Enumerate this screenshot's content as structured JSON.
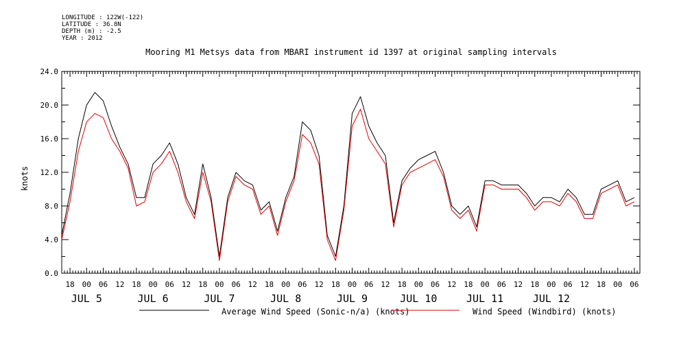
{
  "meta": {
    "longitude": "LONGITUDE : 122W(-122)",
    "latitude": "LATITUDE : 36.8N",
    "depth": "DEPTH (m) : -2.5",
    "year": "YEAR : 2012"
  },
  "chart_data": {
    "type": "line",
    "title": "Mooring M1 Metsys data from MBARI instrument id 1397 at original sampling intervals",
    "ylabel": "knots",
    "xlabel": "",
    "ylim": [
      0,
      24
    ],
    "y_ticks": [
      "0.0",
      "4.0",
      "8.0",
      "12.0",
      "16.0",
      "20.0",
      "24.0"
    ],
    "x_range_hours": [
      -9,
      200
    ],
    "x_hour_ticks": [
      {
        "h": -6,
        "label": "18"
      },
      {
        "h": 0,
        "label": "00"
      },
      {
        "h": 6,
        "label": "06"
      },
      {
        "h": 12,
        "label": "12"
      },
      {
        "h": 18,
        "label": "18"
      },
      {
        "h": 24,
        "label": "00"
      },
      {
        "h": 30,
        "label": "06"
      },
      {
        "h": 36,
        "label": "12"
      },
      {
        "h": 42,
        "label": "18"
      },
      {
        "h": 48,
        "label": "00"
      },
      {
        "h": 54,
        "label": "06"
      },
      {
        "h": 60,
        "label": "12"
      },
      {
        "h": 66,
        "label": "18"
      },
      {
        "h": 72,
        "label": "00"
      },
      {
        "h": 78,
        "label": "06"
      },
      {
        "h": 84,
        "label": "12"
      },
      {
        "h": 90,
        "label": "18"
      },
      {
        "h": 96,
        "label": "00"
      },
      {
        "h": 102,
        "label": "06"
      },
      {
        "h": 108,
        "label": "12"
      },
      {
        "h": 114,
        "label": "18"
      },
      {
        "h": 120,
        "label": "00"
      },
      {
        "h": 126,
        "label": "06"
      },
      {
        "h": 132,
        "label": "12"
      },
      {
        "h": 138,
        "label": "18"
      },
      {
        "h": 144,
        "label": "00"
      },
      {
        "h": 150,
        "label": "06"
      },
      {
        "h": 156,
        "label": "12"
      },
      {
        "h": 162,
        "label": "18"
      },
      {
        "h": 168,
        "label": "00"
      },
      {
        "h": 174,
        "label": "06"
      },
      {
        "h": 180,
        "label": "12"
      },
      {
        "h": 186,
        "label": "18"
      },
      {
        "h": 192,
        "label": "00"
      },
      {
        "h": 198,
        "label": "06"
      }
    ],
    "x_day_labels": [
      {
        "h": 0,
        "label": "JUL  5"
      },
      {
        "h": 24,
        "label": "JUL  6"
      },
      {
        "h": 48,
        "label": "JUL  7"
      },
      {
        "h": 72,
        "label": "JUL  8"
      },
      {
        "h": 96,
        "label": "JUL  9"
      },
      {
        "h": 120,
        "label": "JUL 10"
      },
      {
        "h": 144,
        "label": "JUL 11"
      },
      {
        "h": 168,
        "label": "JUL 12"
      }
    ],
    "series": [
      {
        "name": "Average Wind Speed (Sonic-n/a) (knots)",
        "color": "#000000",
        "x": [
          -9,
          -6,
          -3,
          0,
          3,
          6,
          9,
          12,
          15,
          18,
          21,
          24,
          27,
          30,
          33,
          36,
          39,
          42,
          45,
          48,
          51,
          54,
          57,
          60,
          63,
          66,
          69,
          72,
          75,
          78,
          81,
          84,
          87,
          90,
          93,
          96,
          99,
          102,
          105,
          108,
          111,
          114,
          117,
          120,
          123,
          126,
          129,
          132,
          135,
          138,
          141,
          144,
          147,
          150,
          153,
          156,
          159,
          162,
          165,
          168,
          171,
          174,
          177,
          180,
          183,
          186,
          189,
          192,
          195,
          198
        ],
        "values": [
          4.5,
          9.5,
          16,
          20,
          21.5,
          20.5,
          17.5,
          15,
          13,
          9,
          9,
          13,
          14,
          15.5,
          13,
          9,
          7,
          13,
          9,
          2,
          9,
          12,
          11,
          10.5,
          7.5,
          8.5,
          5,
          9,
          11.5,
          18,
          17,
          14,
          4.5,
          2,
          8,
          19,
          21,
          17.5,
          15.5,
          14,
          6,
          11,
          12.5,
          13.5,
          14,
          14.5,
          12,
          8,
          7,
          8,
          5.5,
          11,
          11,
          10.5,
          10.5,
          10.5,
          9.5,
          8,
          9,
          9,
          8.5,
          10,
          9,
          7,
          7,
          10,
          10.5,
          11,
          8.5,
          9
        ]
      },
      {
        "name": "Wind Speed (Windbird) (knots)",
        "color": "#e00000",
        "x": [
          -9,
          -6,
          -3,
          0,
          3,
          6,
          9,
          12,
          15,
          18,
          21,
          24,
          27,
          30,
          33,
          36,
          39,
          42,
          45,
          48,
          51,
          54,
          57,
          60,
          63,
          66,
          69,
          72,
          75,
          78,
          81,
          84,
          87,
          90,
          93,
          96,
          99,
          102,
          105,
          108,
          111,
          114,
          117,
          120,
          123,
          126,
          129,
          132,
          135,
          138,
          141,
          144,
          147,
          150,
          153,
          156,
          159,
          162,
          165,
          168,
          171,
          174,
          177,
          180,
          183,
          186,
          189,
          192,
          195,
          198
        ],
        "values": [
          4,
          8.5,
          14.5,
          18,
          19,
          18.5,
          16,
          14.5,
          12.5,
          8,
          8.5,
          12,
          13,
          14.5,
          12,
          8.5,
          6.5,
          12,
          8.5,
          1.5,
          8.5,
          11.5,
          10.5,
          10,
          7,
          8,
          4.5,
          8.5,
          11,
          16.5,
          15.5,
          13,
          4,
          1.5,
          7.5,
          17.5,
          19.5,
          16,
          14.5,
          13,
          5.5,
          10.5,
          12,
          12.5,
          13,
          13.5,
          11.5,
          7.5,
          6.5,
          7.5,
          5,
          10.5,
          10.5,
          10,
          10,
          10,
          9,
          7.5,
          8.5,
          8.5,
          8,
          9.5,
          8.5,
          6.5,
          6.5,
          9.5,
          10,
          10.5,
          8,
          8.5
        ]
      }
    ],
    "legend": "bottom"
  }
}
